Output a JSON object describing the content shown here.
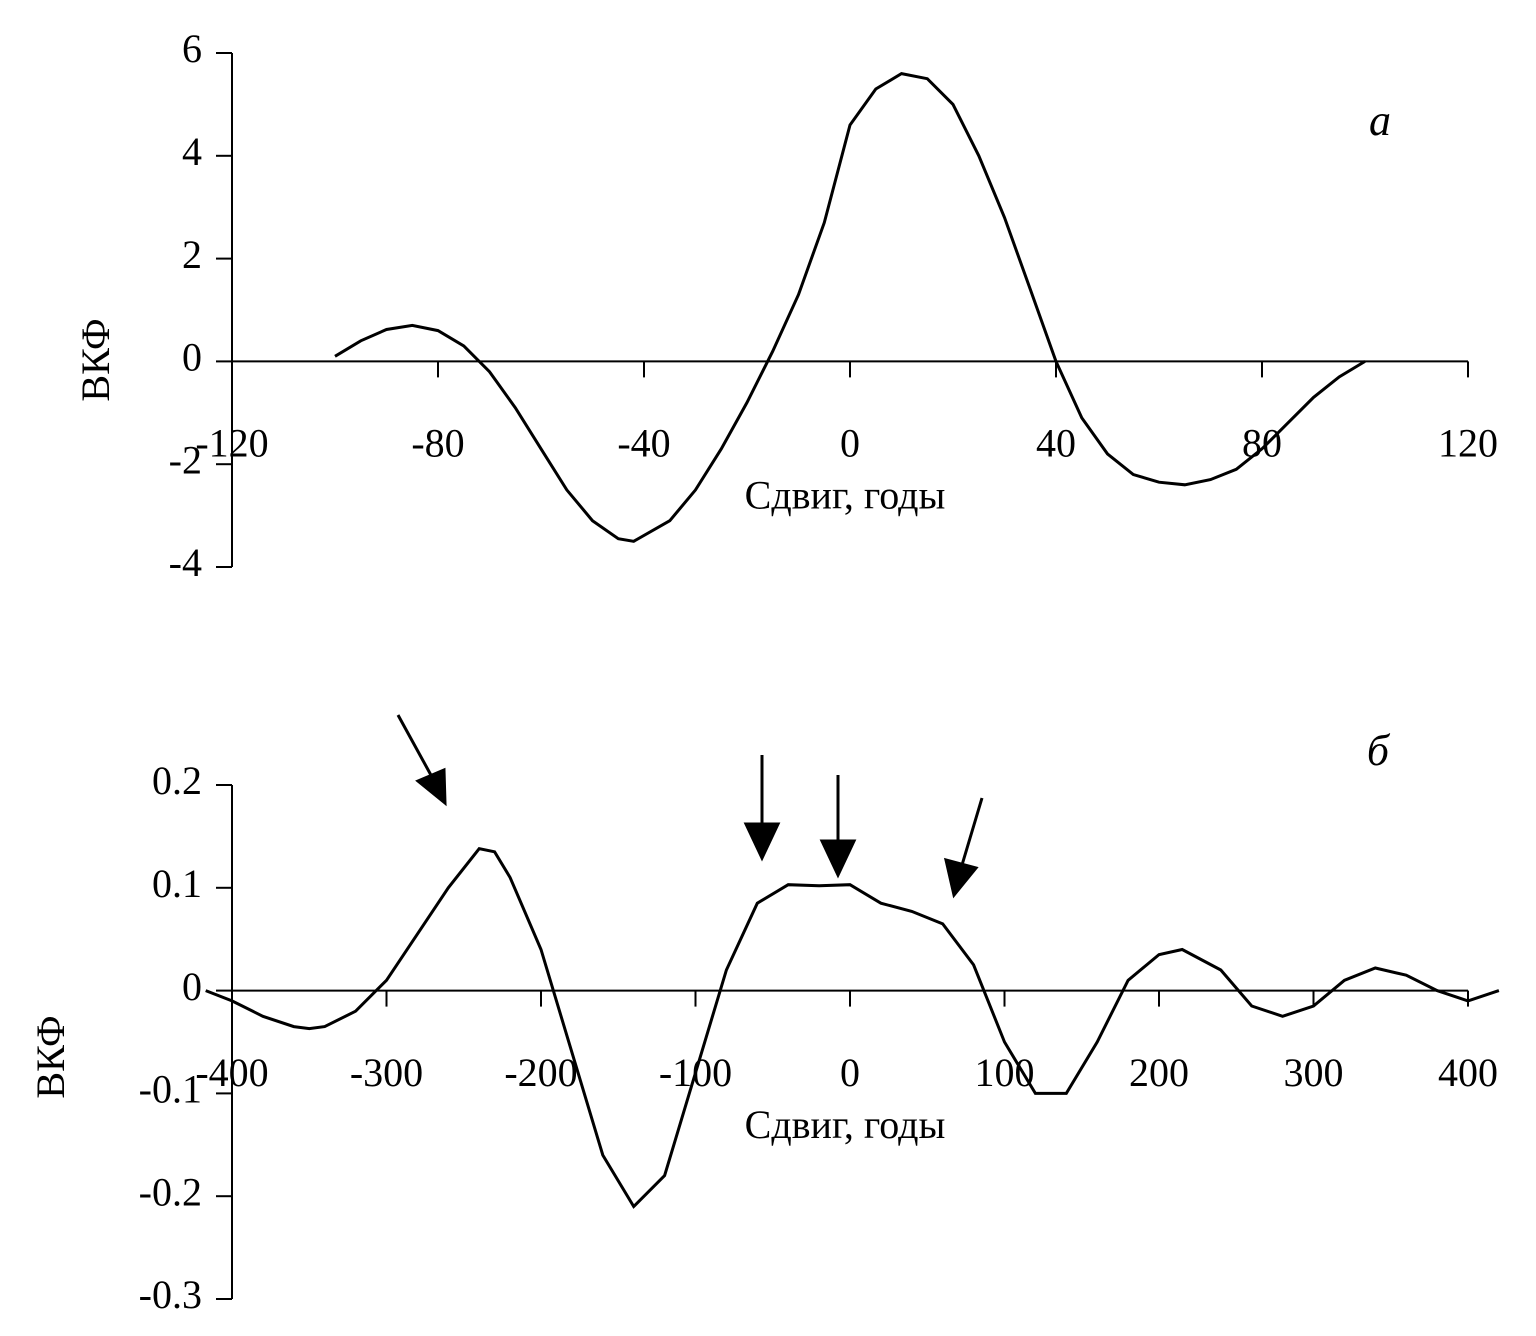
{
  "chart_data": [
    {
      "type": "line",
      "annotation": "а",
      "xlabel": "Сдвиг, годы",
      "ylabel": "ВКФ",
      "xlim": [
        -120,
        120
      ],
      "xticks": [
        -120,
        -80,
        -40,
        0,
        40,
        80,
        120
      ],
      "ylim": [
        -4,
        6
      ],
      "yticks": [
        -4,
        -2,
        0,
        2,
        4,
        6
      ],
      "series": [
        {
          "color": "#000000",
          "x": [
            -100,
            -95,
            -90,
            -85,
            -80,
            -75,
            -70,
            -65,
            -60,
            -55,
            -50,
            -45,
            -42,
            -35,
            -30,
            -25,
            -20,
            -15,
            -10,
            -5,
            0,
            5,
            10,
            15,
            20,
            25,
            30,
            35,
            40,
            45,
            50,
            55,
            60,
            65,
            70,
            75,
            80,
            85,
            90,
            95,
            100
          ],
          "values": [
            0.1,
            0.4,
            0.62,
            0.7,
            0.6,
            0.3,
            -0.2,
            -0.9,
            -1.7,
            -2.5,
            -3.1,
            -3.45,
            -3.5,
            -3.1,
            -2.5,
            -1.7,
            -0.8,
            0.2,
            1.3,
            2.7,
            4.6,
            5.3,
            5.6,
            5.5,
            5.0,
            4.0,
            2.8,
            1.4,
            0,
            -1.1,
            -1.8,
            -2.2,
            -2.35,
            -2.4,
            -2.3,
            -2.1,
            -1.7,
            -1.2,
            -0.7,
            -0.3,
            0
          ]
        }
      ]
    },
    {
      "type": "line",
      "annotation": "б",
      "xlabel": "Сдвиг, годы",
      "ylabel": "ВКФ",
      "xlim": [
        -400,
        400
      ],
      "xticks": [
        -400,
        -300,
        -200,
        -100,
        0,
        100,
        200,
        300,
        400
      ],
      "ylim": [
        -0.3,
        0.2
      ],
      "yticks": [
        -0.3,
        -0.2,
        -0.1,
        0,
        0.1,
        0.2
      ],
      "series": [
        {
          "color": "#000000",
          "x": [
            -417,
            -400,
            -380,
            -360,
            -350,
            -340,
            -320,
            -300,
            -280,
            -260,
            -240,
            -230,
            -220,
            -200,
            -180,
            -160,
            -140,
            -120,
            -100,
            -80,
            -60,
            -40,
            -20,
            0,
            20,
            40,
            60,
            80,
            100,
            120,
            140,
            160,
            180,
            200,
            215,
            240,
            260,
            280,
            300,
            320,
            340,
            360,
            380,
            400,
            420
          ],
          "values": [
            0,
            -0.01,
            -0.025,
            -0.035,
            -0.037,
            -0.035,
            -0.02,
            0.01,
            0.055,
            0.1,
            0.138,
            0.135,
            0.11,
            0.04,
            -0.06,
            -0.16,
            -0.21,
            -0.18,
            -0.08,
            0.02,
            0.085,
            0.103,
            0.102,
            0.103,
            0.085,
            0.077,
            0.065,
            0.025,
            -0.05,
            -0.1,
            -0.1,
            -0.05,
            0.01,
            0.035,
            0.04,
            0.02,
            -0.015,
            -0.025,
            -0.015,
            0.01,
            0.022,
            0.015,
            0,
            -0.01,
            0
          ]
        }
      ]
    }
  ]
}
